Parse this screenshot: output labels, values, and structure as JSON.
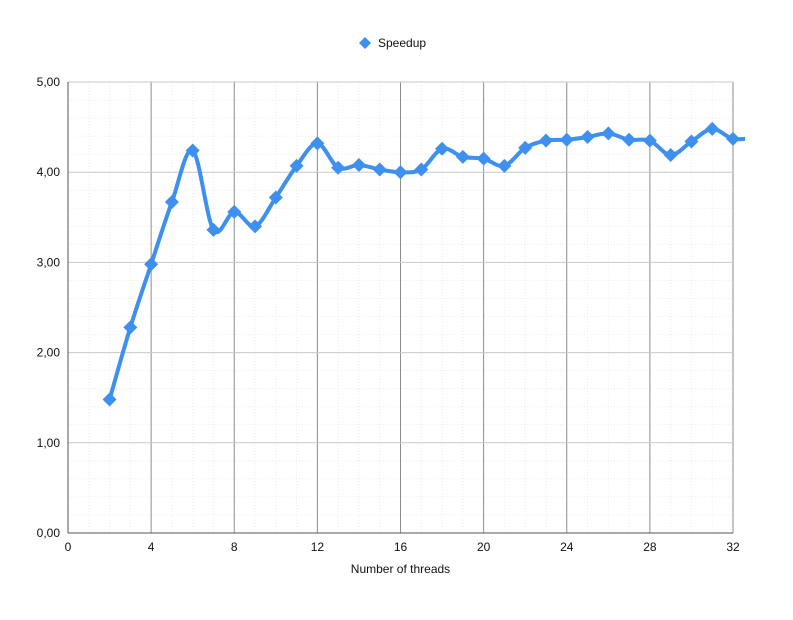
{
  "chart_data": {
    "type": "line",
    "title": "",
    "xlabel": "Number of threads",
    "ylabel": "",
    "xlim": [
      0,
      32
    ],
    "ylim": [
      0,
      5
    ],
    "x_ticks": [
      0,
      4,
      8,
      12,
      16,
      20,
      24,
      28,
      32
    ],
    "y_ticks": [
      "0,00",
      "1,00",
      "2,00",
      "3,00",
      "4,00",
      "5,00"
    ],
    "grid": true,
    "legend_position": "top-center",
    "series": [
      {
        "name": "Speedup",
        "color": "#3d8ff0",
        "marker": "diamond",
        "smooth": true,
        "x": [
          2,
          3,
          4,
          5,
          6,
          7,
          8,
          9,
          10,
          11,
          12,
          13,
          14,
          15,
          16,
          17,
          18,
          19,
          20,
          21,
          22,
          23,
          24,
          25,
          26,
          27,
          28,
          29,
          30,
          31,
          32,
          33
        ],
        "y": [
          1.48,
          2.28,
          2.98,
          3.67,
          4.24,
          3.36,
          3.56,
          3.4,
          3.72,
          4.07,
          4.32,
          4.05,
          4.08,
          4.03,
          4.0,
          4.03,
          4.26,
          4.17,
          4.15,
          4.07,
          4.27,
          4.35,
          4.36,
          4.39,
          4.43,
          4.36,
          4.35,
          4.19,
          4.34,
          4.48,
          4.37,
          4.38
        ]
      }
    ]
  }
}
